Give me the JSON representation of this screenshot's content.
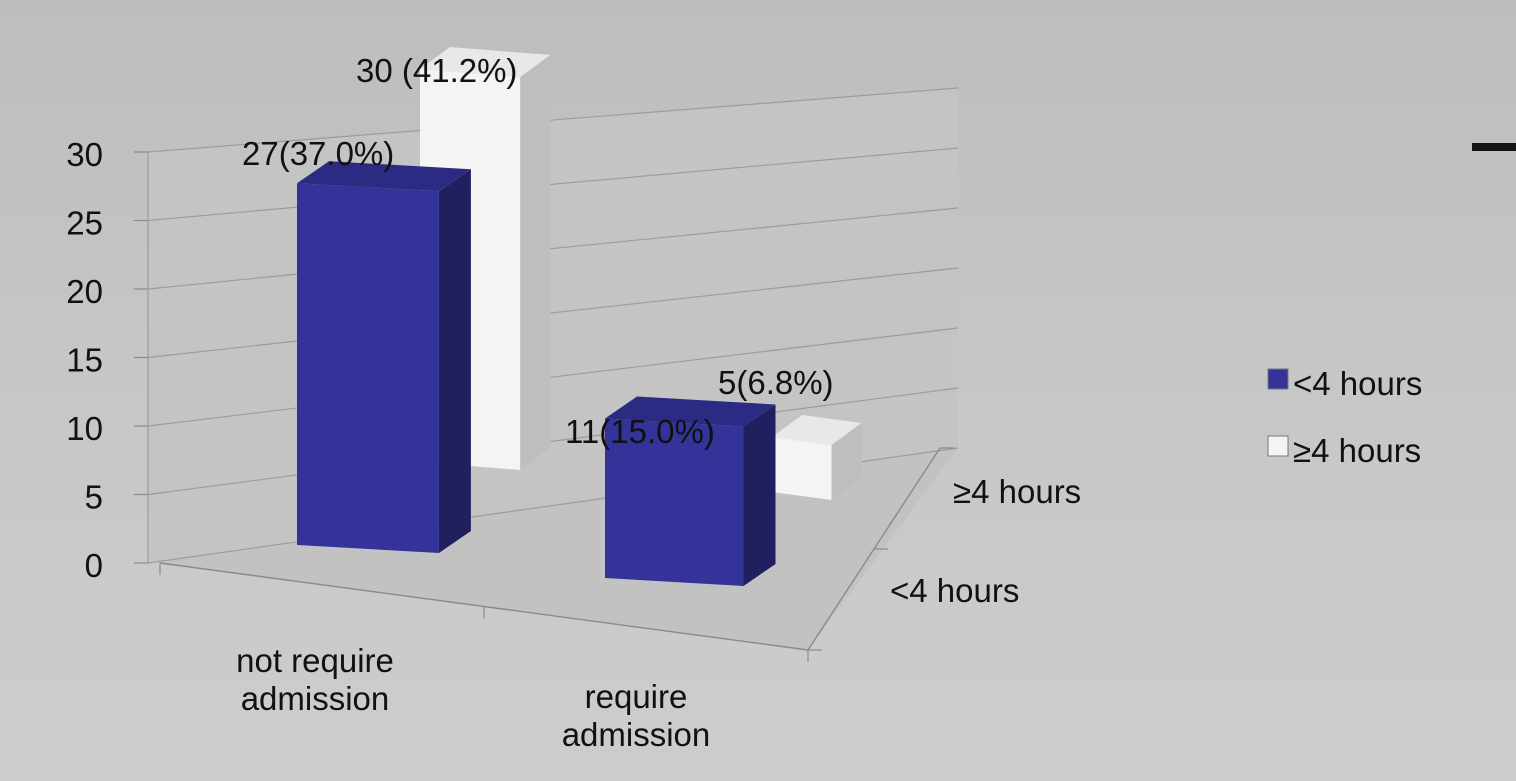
{
  "chart_data": {
    "type": "bar",
    "subtype": "3d-clustered-column",
    "categories": [
      "not require admission",
      "require admission"
    ],
    "series": [
      {
        "name": "<4 hours",
        "values": [
          27,
          11
        ],
        "labels": [
          "27(37.0%)",
          "11(15.0%)"
        ],
        "color": "#33339a"
      },
      {
        "name": "≥4 hours",
        "values": [
          30,
          5
        ],
        "labels": [
          "30 (41.2%)",
          "5(6.8%)"
        ],
        "color": "#f4f4f4"
      }
    ],
    "ylim": [
      0,
      30
    ],
    "yticks": [
      "0",
      "5",
      "10",
      "15",
      "20",
      "25",
      "30"
    ],
    "category_labels": [
      [
        "not require",
        "admission"
      ],
      [
        "require",
        "admission"
      ]
    ],
    "depth_labels": [
      "<4 hours",
      "≥4 hours"
    ],
    "grid": true,
    "legend_position": "right"
  }
}
